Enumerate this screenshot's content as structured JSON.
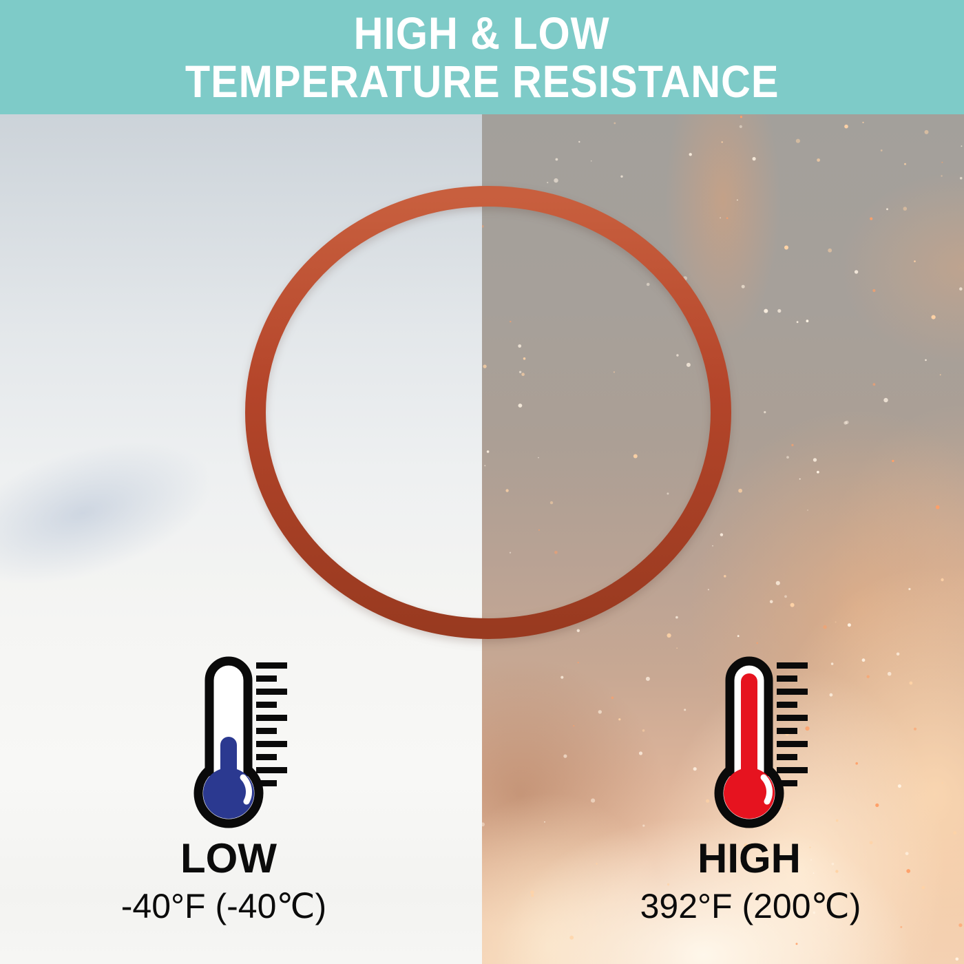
{
  "banner": {
    "line1": "HIGH & LOW",
    "line2": "TEMPERATURE RESISTANCE"
  },
  "low": {
    "label": "LOW",
    "value": "-40°F (-40℃)"
  },
  "high": {
    "label": "HIGH",
    "value": "392°F (200℃)"
  },
  "colors": {
    "banner_bg": "#7ECBC8",
    "banner_text": "#FFFFFF",
    "oring_red": "#B4452A",
    "mercury_low_blue": "#2B3990",
    "mercury_high_red": "#E6131F",
    "icon_outline": "#0A0A0A",
    "label_text": "#0B0B0B"
  }
}
